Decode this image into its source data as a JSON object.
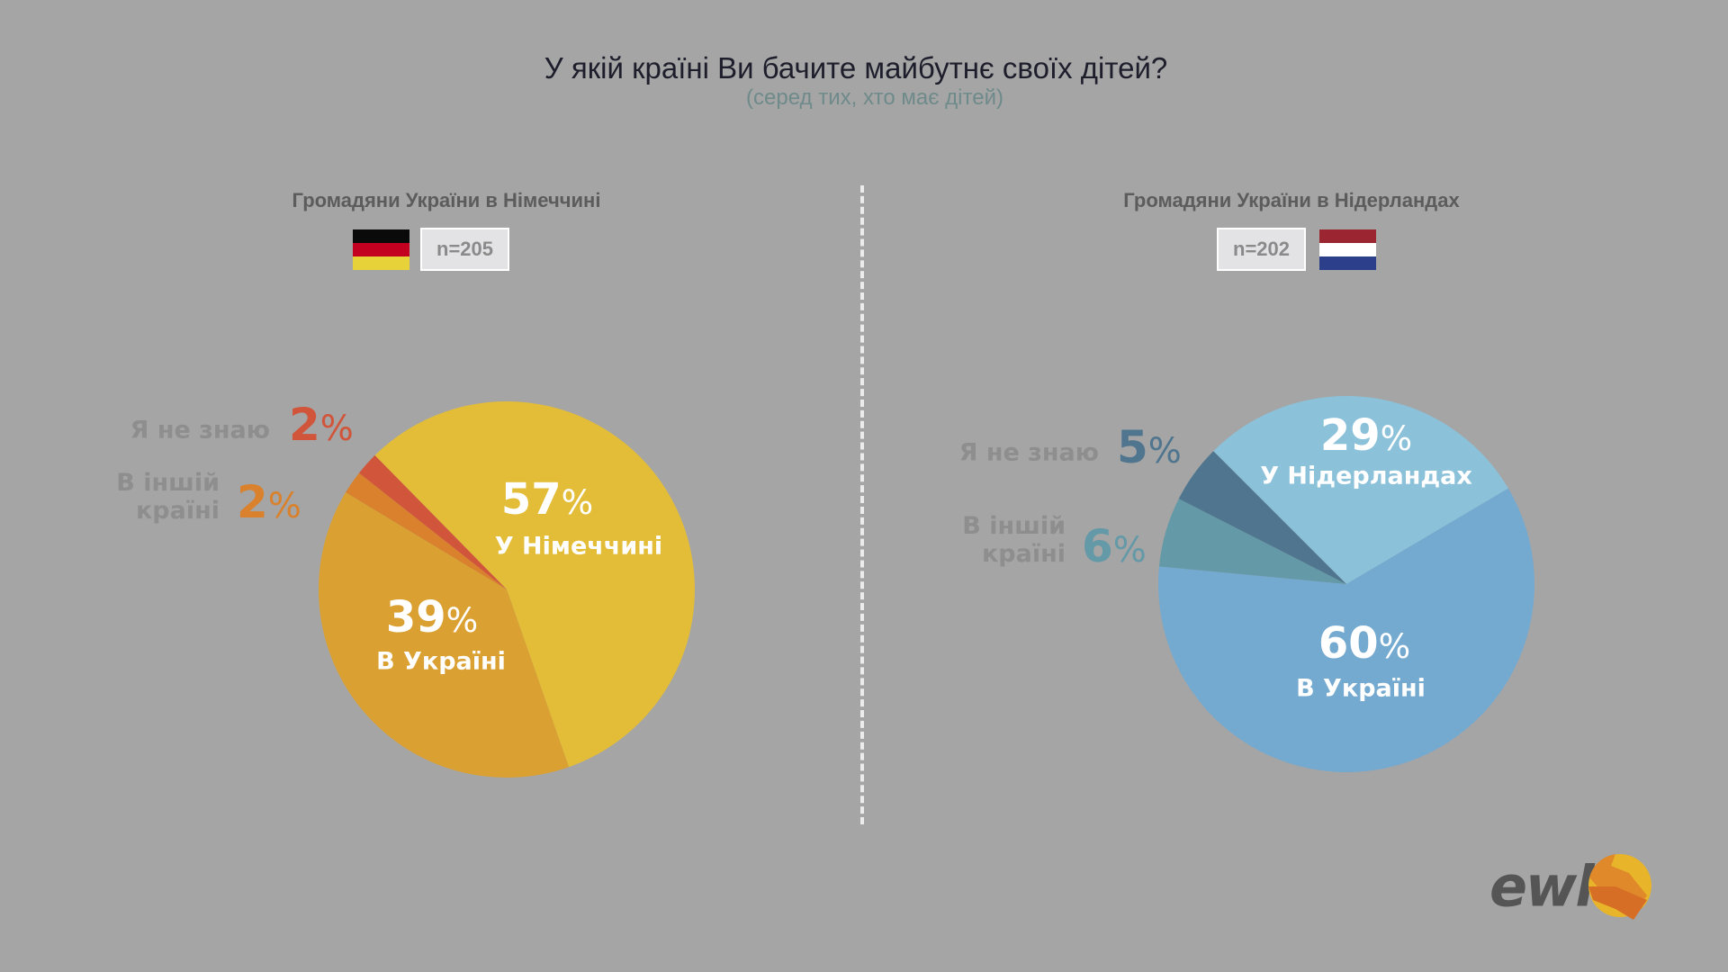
{
  "title": "У якій країні Ви бачите майбутнє своїх дітей?",
  "subtitle": "(серед тих, хто має дітей)",
  "logo": {
    "text": "ewl",
    "icon": "handshake-icon"
  },
  "chart_data": [
    {
      "type": "pie",
      "title": "Громадяни України в Німеччині",
      "sample": "n=205",
      "flag": "germany-flag",
      "slices": [
        {
          "label": "У Німеччині",
          "value": 57,
          "color": "#e3bd37"
        },
        {
          "label": "В Україні",
          "value": 39,
          "color": "#daa032"
        },
        {
          "label": "В іншій країні",
          "value": 2,
          "color": "#d9812d"
        },
        {
          "label": "Я не знаю",
          "value": 2,
          "color": "#d1553a"
        }
      ]
    },
    {
      "type": "pie",
      "title": "Громадяни України в Нідерландах",
      "sample": "n=202",
      "flag": "netherlands-flag",
      "slices": [
        {
          "label": "У Нідерландах",
          "value": 29,
          "color": "#8cc1da"
        },
        {
          "label": "В Україні",
          "value": 60,
          "color": "#74a9d0"
        },
        {
          "label": "В іншій країні",
          "value": 6,
          "color": "#6499a8"
        },
        {
          "label": "Я не знаю",
          "value": 5,
          "color": "#50758f"
        }
      ]
    }
  ],
  "labels": {
    "left": {
      "main_num": "57",
      "main_label": "У Німеччині",
      "ua_num": "39",
      "ua_label": "В Україні",
      "other_l1": "В іншій",
      "other_l2": "країні",
      "other_num": "2",
      "dk_label": "Я не знаю",
      "dk_num": "2"
    },
    "right": {
      "main_num": "29",
      "main_label": "У Нідерландах",
      "ua_num": "60",
      "ua_label": "В Україні",
      "other_l1": "В іншій",
      "other_l2": "країні",
      "other_num": "6",
      "dk_label": "Я не знаю",
      "dk_num": "5"
    },
    "pct": "%"
  }
}
